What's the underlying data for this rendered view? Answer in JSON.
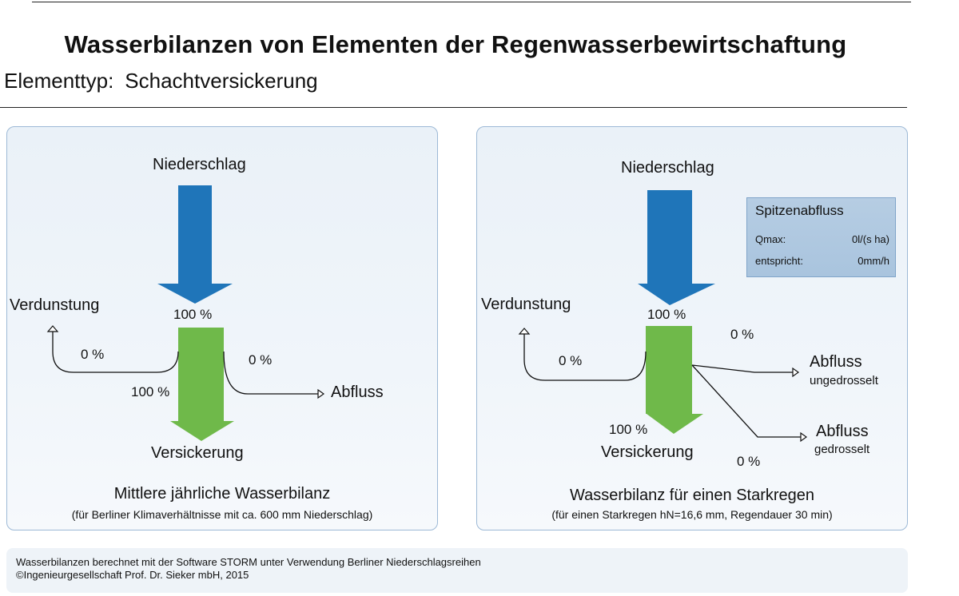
{
  "header": {
    "title": "Wasserbilanzen von Elementen der Regenwasserbewirtschaftung",
    "element_label": "Elementtyp:",
    "element_value": "Schachtversickerung"
  },
  "left_panel": {
    "niederschlag": "Niederschlag",
    "niederschlag_pct": "100 %",
    "verdunstung": "Verdunstung",
    "verdunstung_pct": "0 %",
    "abfluss": "Abfluss",
    "abfluss_pct": "0 %",
    "versickerung": "Versickerung",
    "versickerung_pct": "100 %",
    "caption": "Mittlere jährliche Wasserbilanz",
    "caption_sub": "(für Berliner Klimaverhältnisse mit ca. 600 mm Niederschlag)"
  },
  "right_panel": {
    "niederschlag": "Niederschlag",
    "niederschlag_pct": "100 %",
    "verdunstung": "Verdunstung",
    "verdunstung_pct": "0 %",
    "abfluss_ungedrosselt_pct": "0 %",
    "abfluss_ungedrosselt": "Abfluss",
    "abfluss_ungedrosselt_sub": "ungedrosselt",
    "abfluss_gedrosselt": "Abfluss",
    "abfluss_gedrosselt_sub": "gedrosselt",
    "abfluss_gedrosselt_pct": "0 %",
    "versickerung": "Versickerung",
    "versickerung_pct": "100 %",
    "caption": "Wasserbilanz für einen Starkregen",
    "caption_sub": "(für einen Starkregen hN=16,6 mm, Regendauer 30 min)",
    "peak": {
      "title": "Spitzenabfluss",
      "qmax_label": "Qmax:",
      "qmax_value": "0l/(s ha)",
      "entspricht_label": "entspricht:",
      "entspricht_value": "0mm/h"
    }
  },
  "footer": {
    "line1": "Wasserbilanzen berechnet mit der Software STORM unter Verwendung Berliner Niederschlagsreihen",
    "line2": "©Ingenieurgesellschaft Prof. Dr. Sieker mbH, 2015"
  },
  "colors": {
    "blue_arrow": "#1f75b9",
    "green_arrow": "#6fb94a",
    "panel_border": "#9db9d6"
  }
}
